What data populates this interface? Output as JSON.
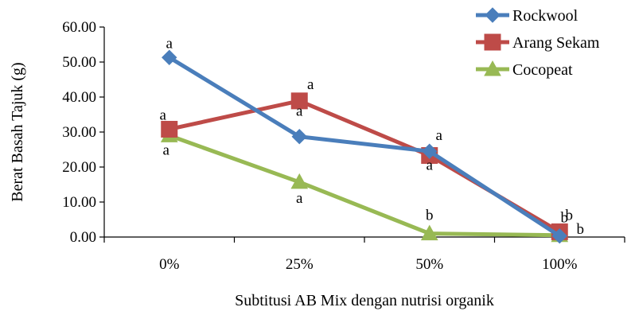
{
  "chart_data": {
    "type": "line",
    "categories": [
      "0%",
      "25%",
      "50%",
      "100%"
    ],
    "xlabel": "Subtitusi AB Mix dengan nutrisi organik",
    "ylabel": "Berat Basah Tajuk (g)",
    "ylim": [
      0,
      60
    ],
    "yticks": [
      "0.00",
      "10.00",
      "20.00",
      "30.00",
      "40.00",
      "50.00",
      "60.00"
    ],
    "grid": false,
    "legend_position": "top-right",
    "series": [
      {
        "name": "Rockwool",
        "color": "#4a7ebb",
        "marker": "diamond",
        "values": [
          51.3,
          28.7,
          24.5,
          0.3
        ],
        "labels": [
          "a",
          "a",
          "a",
          "b"
        ]
      },
      {
        "name": "Arang Sekam",
        "color": "#be4b48",
        "marker": "square",
        "values": [
          30.8,
          38.9,
          23.3,
          1.5
        ],
        "labels": [
          "a",
          "a",
          "a",
          "b"
        ]
      },
      {
        "name": "Cocopeat",
        "color": "#98b954",
        "marker": "triangle",
        "values": [
          29.0,
          15.7,
          1.0,
          0.5
        ],
        "labels": [
          "a",
          "a",
          "b",
          "b"
        ]
      }
    ]
  }
}
